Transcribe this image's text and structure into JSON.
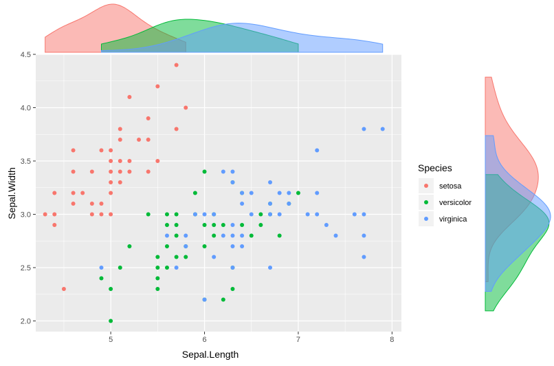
{
  "chart_data": {
    "type": "scatter",
    "xlabel": "Sepal.Length",
    "ylabel": "Sepal.Width",
    "xlim": [
      4.2,
      8.1
    ],
    "ylim": [
      1.9,
      4.5
    ],
    "x_ticks": [
      "5",
      "6",
      "7",
      "8"
    ],
    "y_ticks": [
      "2.0",
      "2.5",
      "3.0",
      "3.5",
      "4.0",
      "4.5"
    ],
    "grid": true,
    "legend": {
      "title": "Species",
      "placement": "right",
      "entries": [
        "setosa",
        "versicolor",
        "virginica"
      ]
    },
    "marginal_density": {
      "top": "Sepal.Length",
      "right": "Sepal.Width"
    },
    "colors": {
      "setosa": "#F8766D",
      "versicolor": "#00BA38",
      "virginica": "#619CFF"
    },
    "series": [
      {
        "name": "setosa",
        "points": [
          [
            4.3,
            3.0
          ],
          [
            4.4,
            2.9
          ],
          [
            4.4,
            3.0
          ],
          [
            4.4,
            3.2
          ],
          [
            4.5,
            2.3
          ],
          [
            4.6,
            3.1
          ],
          [
            4.6,
            3.2
          ],
          [
            4.6,
            3.4
          ],
          [
            4.6,
            3.6
          ],
          [
            4.7,
            3.2
          ],
          [
            4.8,
            3.0
          ],
          [
            4.8,
            3.1
          ],
          [
            4.8,
            3.4
          ],
          [
            4.9,
            3.0
          ],
          [
            4.9,
            3.1
          ],
          [
            4.9,
            3.6
          ],
          [
            5.0,
            3.0
          ],
          [
            5.0,
            3.2
          ],
          [
            5.0,
            3.3
          ],
          [
            5.0,
            3.4
          ],
          [
            5.0,
            3.5
          ],
          [
            5.0,
            3.6
          ],
          [
            5.1,
            3.3
          ],
          [
            5.1,
            3.4
          ],
          [
            5.1,
            3.5
          ],
          [
            5.1,
            3.7
          ],
          [
            5.1,
            3.8
          ],
          [
            5.2,
            3.4
          ],
          [
            5.2,
            3.5
          ],
          [
            5.2,
            4.1
          ],
          [
            5.3,
            3.7
          ],
          [
            5.4,
            3.4
          ],
          [
            5.4,
            3.7
          ],
          [
            5.4,
            3.9
          ],
          [
            5.5,
            3.5
          ],
          [
            5.5,
            4.2
          ],
          [
            5.7,
            3.8
          ],
          [
            5.7,
            4.4
          ],
          [
            5.8,
            4.0
          ]
        ]
      },
      {
        "name": "versicolor",
        "points": [
          [
            4.9,
            2.4
          ],
          [
            5.0,
            2.0
          ],
          [
            5.0,
            2.3
          ],
          [
            5.1,
            2.5
          ],
          [
            5.2,
            2.7
          ],
          [
            5.4,
            3.0
          ],
          [
            5.5,
            2.3
          ],
          [
            5.5,
            2.4
          ],
          [
            5.5,
            2.5
          ],
          [
            5.5,
            2.6
          ],
          [
            5.6,
            2.5
          ],
          [
            5.6,
            2.7
          ],
          [
            5.6,
            2.9
          ],
          [
            5.6,
            3.0
          ],
          [
            5.7,
            2.6
          ],
          [
            5.7,
            2.8
          ],
          [
            5.7,
            2.9
          ],
          [
            5.7,
            3.0
          ],
          [
            5.8,
            2.6
          ],
          [
            5.8,
            2.7
          ],
          [
            5.9,
            3.0
          ],
          [
            5.9,
            3.2
          ],
          [
            6.0,
            2.2
          ],
          [
            6.0,
            2.7
          ],
          [
            6.0,
            2.9
          ],
          [
            6.0,
            3.4
          ],
          [
            6.1,
            2.8
          ],
          [
            6.1,
            2.9
          ],
          [
            6.1,
            3.0
          ],
          [
            6.2,
            2.2
          ],
          [
            6.2,
            2.9
          ],
          [
            6.3,
            2.3
          ],
          [
            6.3,
            2.5
          ],
          [
            6.3,
            3.3
          ],
          [
            6.4,
            2.9
          ],
          [
            6.4,
            3.2
          ],
          [
            6.5,
            2.8
          ],
          [
            6.6,
            2.9
          ],
          [
            6.6,
            3.0
          ],
          [
            6.7,
            3.0
          ],
          [
            6.7,
            3.1
          ],
          [
            6.8,
            2.8
          ],
          [
            6.9,
            3.1
          ],
          [
            7.0,
            3.2
          ]
        ]
      },
      {
        "name": "virginica",
        "points": [
          [
            4.9,
            2.5
          ],
          [
            5.6,
            2.8
          ],
          [
            5.7,
            2.5
          ],
          [
            5.8,
            2.7
          ],
          [
            5.8,
            2.8
          ],
          [
            5.9,
            3.0
          ],
          [
            6.0,
            2.2
          ],
          [
            6.0,
            3.0
          ],
          [
            6.1,
            2.6
          ],
          [
            6.1,
            3.0
          ],
          [
            6.2,
            2.8
          ],
          [
            6.2,
            3.4
          ],
          [
            6.3,
            2.5
          ],
          [
            6.3,
            2.7
          ],
          [
            6.3,
            2.8
          ],
          [
            6.3,
            2.9
          ],
          [
            6.3,
            3.3
          ],
          [
            6.3,
            3.4
          ],
          [
            6.4,
            2.7
          ],
          [
            6.4,
            2.8
          ],
          [
            6.4,
            3.1
          ],
          [
            6.4,
            3.2
          ],
          [
            6.5,
            3.0
          ],
          [
            6.5,
            3.2
          ],
          [
            6.7,
            2.5
          ],
          [
            6.7,
            3.0
          ],
          [
            6.7,
            3.1
          ],
          [
            6.7,
            3.3
          ],
          [
            6.8,
            3.0
          ],
          [
            6.8,
            3.2
          ],
          [
            6.9,
            3.1
          ],
          [
            6.9,
            3.2
          ],
          [
            7.1,
            3.0
          ],
          [
            7.2,
            3.0
          ],
          [
            7.2,
            3.2
          ],
          [
            7.2,
            3.6
          ],
          [
            7.3,
            2.9
          ],
          [
            7.4,
            2.8
          ],
          [
            7.6,
            3.0
          ],
          [
            7.7,
            2.6
          ],
          [
            7.7,
            2.8
          ],
          [
            7.7,
            3.0
          ],
          [
            7.7,
            3.8
          ],
          [
            7.9,
            3.8
          ]
        ]
      }
    ]
  }
}
